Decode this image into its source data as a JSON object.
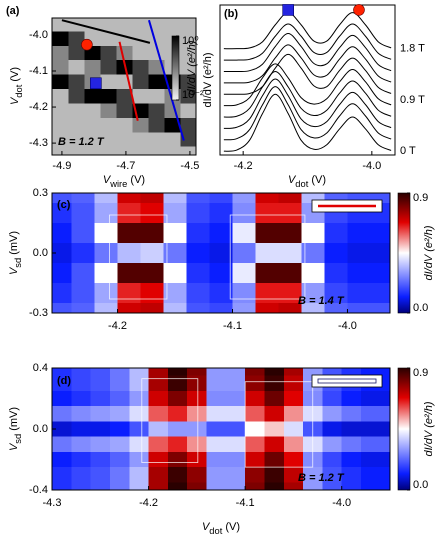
{
  "chart_data": [
    {
      "type": "heatmap",
      "label": "(a)",
      "x_label": {
        "symbol": "V",
        "subscript": "wire",
        "unit": " (V)"
      },
      "y_label": {
        "symbol": "V",
        "subscript": "dot",
        "unit": " (V)"
      },
      "annotation": "B = 1.2 T",
      "x": [
        -4.905,
        -4.855,
        -4.805,
        -4.755,
        -4.705,
        -4.655,
        -4.605,
        -4.555,
        -4.505
      ],
      "y": [
        -3.97,
        -4.01,
        -4.05,
        -4.09,
        -4.13,
        -4.17,
        -4.21,
        -4.25,
        -4.29,
        -4.33
      ],
      "z": [
        [
          0.03,
          0.03,
          0.03,
          0.03,
          0.03,
          0.03,
          0.03,
          0.03,
          0.03
        ],
        [
          1,
          0.3,
          0.03,
          0.03,
          0.03,
          0.03,
          0.03,
          0.03,
          0.03
        ],
        [
          0.08,
          0.3,
          1,
          0.3,
          0.08,
          0.03,
          0.03,
          0.03,
          0.03
        ],
        [
          0.08,
          0.03,
          0.08,
          0.3,
          1,
          0.3,
          0.08,
          0.03,
          0.03
        ],
        [
          1,
          0.3,
          0.08,
          0.03,
          0.03,
          0.3,
          1,
          1,
          0.3
        ],
        [
          0.03,
          0.3,
          1,
          1,
          0.3,
          0.03,
          0.03,
          0.08,
          0.3
        ],
        [
          0.03,
          0.03,
          0.03,
          0.08,
          0.3,
          1,
          0.3,
          0.08,
          0.03
        ],
        [
          0.03,
          0.03,
          0.03,
          0.03,
          0.03,
          0.08,
          0.3,
          1,
          0.3
        ],
        [
          0.03,
          0.03,
          0.03,
          0.03,
          0.03,
          0.03,
          0.03,
          0.03,
          0.3
        ],
        [
          0.03,
          0.03,
          0.03,
          0.03,
          0.03,
          0.03,
          0.03,
          0.03,
          0.03
        ]
      ],
      "xlim": [
        -4.931,
        -4.481
      ],
      "ylim": [
        -4.333,
        -3.953
      ],
      "xticks": [
        -4.9,
        -4.7,
        -4.5
      ],
      "yticks": [
        {
          "value": -4,
          "label": "-4.0"
        },
        -4.1,
        -4.2,
        -4.3
      ],
      "zscale": "log",
      "zlim": [
        0.01,
        1
      ],
      "zticks": [
        {
          "value": 1,
          "label": "10⁰"
        },
        {
          "value": 0.01,
          "label": "10⁻²"
        }
      ],
      "colorbar_label": "dI/dV (e²/h)",
      "colorscale": [
        [
          0.01,
          "#f4f4f4"
        ],
        [
          1,
          "#000000"
        ]
      ],
      "lines": [
        {
          "color": "#000000",
          "x": [
            -4.9,
            -4.625
          ],
          "y": [
            -3.959,
            -4.022
          ]
        },
        {
          "color": "#e00000",
          "x": [
            -4.72,
            -4.663
          ],
          "y": [
            -4.019,
            -4.238
          ]
        },
        {
          "color": "#0000e0",
          "x": [
            -4.628,
            -4.519
          ],
          "y": [
            -3.959,
            -4.293
          ]
        }
      ],
      "markers": [
        {
          "shape": "circle",
          "color": "#ff2200",
          "x": -4.822,
          "y": -4.027
        },
        {
          "shape": "square",
          "color": "#2424e0",
          "x": -4.794,
          "y": -4.134
        }
      ]
    },
    {
      "type": "line",
      "label": "(b)",
      "x_label": {
        "symbol": "V",
        "subscript": "dot",
        "unit": " (V)"
      },
      "y_label": "dI/dV (e²/h)",
      "x": [
        -4.23,
        -4.21,
        -4.19,
        -4.17,
        -4.15,
        -4.13,
        -4.11,
        -4.09,
        -4.07,
        -4.05,
        -4.03,
        -4.01,
        -3.99,
        -3.97
      ],
      "series": [
        {
          "color": "#000000",
          "values": [
            0,
            0.03,
            0.29,
            0.99,
            1.5,
            0.99,
            0.29,
            0.05,
            0.17,
            0.59,
            0.9,
            0.59,
            0.17,
            0.02
          ]
        },
        {
          "color": "#000000",
          "values": [
            0.3,
            0.33,
            0.57,
            1.22,
            1.7,
            1.22,
            0.57,
            0.35,
            0.48,
            0.93,
            1.25,
            0.93,
            0.48,
            0.32
          ]
        },
        {
          "color": "#000000",
          "values": [
            0.6,
            0.63,
            0.85,
            1.46,
            1.9,
            1.46,
            0.85,
            0.65,
            0.78,
            1.23,
            1.55,
            1.23,
            0.78,
            0.62
          ]
        },
        {
          "color": "#000000",
          "values": [
            0.9,
            0.92,
            1.13,
            1.69,
            2.1,
            1.69,
            1.13,
            0.94,
            1.08,
            1.53,
            1.85,
            1.53,
            1.08,
            0.92
          ]
        },
        {
          "color": "#000000",
          "values": [
            1.2,
            1.22,
            1.41,
            1.93,
            2.3,
            1.93,
            1.41,
            1.24,
            1.38,
            1.83,
            2.15,
            1.83,
            1.38,
            1.22
          ]
        },
        {
          "color": "#000000",
          "values": [
            1.5,
            1.5,
            1.52,
            1.7,
            2.19,
            2.55,
            2.19,
            1.72,
            1.7,
            2.13,
            2.45,
            2.13,
            1.68,
            1.52
          ]
        },
        {
          "color": "#000000",
          "values": [
            1.8,
            1.8,
            1.82,
            1.99,
            2.46,
            2.8,
            2.46,
            2.01,
            2.0,
            2.43,
            2.75,
            2.43,
            1.98,
            1.82
          ]
        },
        {
          "color": "#000000",
          "values": [
            2.1,
            2.1,
            2.12,
            2.29,
            2.76,
            3.1,
            2.76,
            2.31,
            2.3,
            2.73,
            3.05,
            2.73,
            2.28,
            2.12
          ]
        },
        {
          "color": "#000000",
          "values": [
            2.4,
            2.4,
            2.42,
            2.58,
            3.03,
            3.35,
            3.03,
            2.6,
            2.6,
            3.03,
            3.35,
            3.03,
            2.58,
            2.42
          ]
        },
        {
          "color": "#000000",
          "values": [
            2.7,
            2.7,
            2.72,
            2.88,
            3.33,
            3.65,
            3.33,
            2.9,
            2.9,
            3.33,
            3.65,
            3.33,
            2.88,
            2.72
          ]
        }
      ],
      "xlim": [
        -4.236,
        -3.964
      ],
      "ylim": [
        -0.1,
        3.85
      ],
      "xticks": [
        -4.2,
        {
          "value": -4,
          "label": "-4.0"
        }
      ],
      "right_labels": [
        "1.8 T",
        "0.9 T",
        "0 T"
      ],
      "markers": [
        {
          "shape": "square",
          "color": "#2424e0",
          "x": -4.13,
          "y": 3.72
        },
        {
          "shape": "circle",
          "color": "#ff2200",
          "x": -4.02,
          "y": 3.72
        }
      ]
    },
    {
      "type": "heatmap",
      "label": "(c)",
      "y_label": {
        "symbol": "V",
        "subscript": "sd",
        "unit": " (mV)"
      },
      "annotation": "B = 1.4 T",
      "x": [
        -4.25,
        -4.23,
        -4.21,
        -4.19,
        -4.17,
        -4.15,
        -4.13,
        -4.11,
        -4.09,
        -4.07,
        -4.05,
        -4.03,
        -4.01,
        -3.99,
        -3.97
      ],
      "y": [
        0.3,
        0.2,
        0.1,
        0,
        -0.1,
        -0.2,
        -0.3
      ],
      "z": [
        [
          0.2,
          0.22,
          0.35,
          0.7,
          0.72,
          0.35,
          0.2,
          0.18,
          0.3,
          0.7,
          0.72,
          0.35,
          0.22,
          0.2,
          0.2
        ],
        [
          0.15,
          0.2,
          0.32,
          0.65,
          0.68,
          0.32,
          0.18,
          0.15,
          0.28,
          0.66,
          0.66,
          0.3,
          0.18,
          0.15,
          0.15
        ],
        [
          0.12,
          0.2,
          0.45,
          0.85,
          0.85,
          0.45,
          0.15,
          0.12,
          0.42,
          0.85,
          0.85,
          0.45,
          0.15,
          0.12,
          0.12
        ],
        [
          0.1,
          0.15,
          0.25,
          0.35,
          0.38,
          0.25,
          0.12,
          0.1,
          0.25,
          0.4,
          0.4,
          0.25,
          0.12,
          0.1,
          0.1
        ],
        [
          0.12,
          0.2,
          0.45,
          0.85,
          0.85,
          0.45,
          0.15,
          0.12,
          0.42,
          0.85,
          0.85,
          0.45,
          0.15,
          0.12,
          0.12
        ],
        [
          0.15,
          0.2,
          0.32,
          0.65,
          0.68,
          0.32,
          0.18,
          0.15,
          0.28,
          0.66,
          0.66,
          0.3,
          0.18,
          0.15,
          0.15
        ],
        [
          0.2,
          0.22,
          0.35,
          0.7,
          0.72,
          0.35,
          0.2,
          0.18,
          0.3,
          0.7,
          0.72,
          0.35,
          0.22,
          0.2,
          0.2
        ]
      ],
      "xlim": [
        -4.257,
        -3.963
      ],
      "ylim": [
        -0.3,
        0.3
      ],
      "xticks": [
        -4.2,
        -4.1,
        {
          "value": -4,
          "label": "-4.0"
        }
      ],
      "yticks": [
        0.3,
        {
          "value": 0,
          "label": "0.0"
        },
        -0.3
      ],
      "zscale": "linear",
      "zlim": [
        0,
        0.9
      ],
      "zticks": [
        {
          "value": 0.9,
          "label": "0.9"
        },
        {
          "value": 0,
          "label": "0.0"
        }
      ],
      "colorbar_label": "dI/dV (e²/h)",
      "colorscale": [
        [
          0,
          "#00007a"
        ],
        [
          0.12,
          "#0a1eff"
        ],
        [
          0.45,
          "#ffffff"
        ],
        [
          0.68,
          "#e00000"
        ],
        [
          0.9,
          "#2a0000"
        ]
      ],
      "windows": [
        {
          "x": [
            -4.207,
            -4.157
          ],
          "y": [
            -0.23,
            0.19
          ]
        },
        {
          "x": [
            -4.102,
            -4.037
          ],
          "y": [
            -0.23,
            0.19
          ]
        }
      ]
    },
    {
      "type": "heatmap",
      "label": "(d)",
      "x_label": {
        "symbol": "V",
        "subscript": "dot",
        "unit": " (V)"
      },
      "y_label": {
        "symbol": "V",
        "subscript": "sd",
        "unit": " (mV)"
      },
      "annotation": "B = 1.2 T",
      "x": [
        -4.29,
        -4.27,
        -4.25,
        -4.23,
        -4.21,
        -4.19,
        -4.17,
        -4.15,
        -4.13,
        -4.11,
        -4.09,
        -4.07,
        -4.05,
        -4.03,
        -4.01,
        -3.99,
        -3.97,
        -3.95
      ],
      "y": [
        0.4,
        0.3,
        0.2,
        0.1,
        0,
        -0.1,
        -0.2,
        -0.3,
        -0.4
      ],
      "z": [
        [
          0.15,
          0.18,
          0.2,
          0.25,
          0.35,
          0.75,
          0.9,
          0.8,
          0.3,
          0.3,
          0.8,
          0.9,
          0.75,
          0.3,
          0.2,
          0.15,
          0.12,
          0.12
        ],
        [
          0.15,
          0.18,
          0.2,
          0.25,
          0.35,
          0.75,
          0.88,
          0.78,
          0.3,
          0.3,
          0.78,
          0.88,
          0.72,
          0.3,
          0.2,
          0.15,
          0.12,
          0.12
        ],
        [
          0.12,
          0.15,
          0.18,
          0.22,
          0.3,
          0.7,
          0.8,
          0.7,
          0.28,
          0.28,
          0.7,
          0.82,
          0.68,
          0.28,
          0.18,
          0.12,
          0.1,
          0.1
        ],
        [
          0.25,
          0.28,
          0.3,
          0.32,
          0.4,
          0.6,
          0.65,
          0.55,
          0.4,
          0.4,
          0.6,
          0.7,
          0.55,
          0.4,
          0.3,
          0.25,
          0.22,
          0.22
        ],
        [
          0.08,
          0.1,
          0.1,
          0.12,
          0.2,
          0.35,
          0.3,
          0.3,
          0.2,
          0.2,
          0.45,
          0.5,
          0.4,
          0.2,
          0.1,
          0.08,
          0.08,
          0.08
        ],
        [
          0.25,
          0.28,
          0.3,
          0.32,
          0.4,
          0.6,
          0.65,
          0.55,
          0.4,
          0.4,
          0.6,
          0.7,
          0.55,
          0.4,
          0.3,
          0.25,
          0.22,
          0.22
        ],
        [
          0.12,
          0.15,
          0.18,
          0.22,
          0.3,
          0.7,
          0.8,
          0.7,
          0.28,
          0.28,
          0.7,
          0.82,
          0.68,
          0.28,
          0.18,
          0.12,
          0.1,
          0.1
        ],
        [
          0.15,
          0.18,
          0.2,
          0.25,
          0.35,
          0.75,
          0.88,
          0.78,
          0.3,
          0.3,
          0.78,
          0.88,
          0.72,
          0.3,
          0.2,
          0.15,
          0.12,
          0.12
        ],
        [
          0.15,
          0.18,
          0.2,
          0.25,
          0.35,
          0.75,
          0.9,
          0.8,
          0.3,
          0.3,
          0.8,
          0.9,
          0.75,
          0.3,
          0.2,
          0.15,
          0.12,
          0.12
        ]
      ],
      "xlim": [
        -4.3,
        -3.95
      ],
      "ylim": [
        -0.4,
        0.4
      ],
      "xticks": [
        -4.3,
        -4.2,
        -4.1,
        {
          "value": -4,
          "label": "-4.0"
        }
      ],
      "yticks": [
        0.4,
        {
          "value": 0,
          "label": "0.0"
        },
        -0.4
      ],
      "zscale": "linear",
      "zlim": [
        0,
        0.9
      ],
      "zticks": [
        {
          "value": 0.9,
          "label": "0.9"
        },
        {
          "value": 0,
          "label": "0.0"
        }
      ],
      "colorbar_label": "dI/dV (e²/h)",
      "colorscale": [
        [
          0,
          "#00007a"
        ],
        [
          0.12,
          "#0a1eff"
        ],
        [
          0.45,
          "#ffffff"
        ],
        [
          0.68,
          "#e00000"
        ],
        [
          0.9,
          "#2a0000"
        ]
      ],
      "windows": [
        {
          "x": [
            -4.207,
            -4.149
          ],
          "y": [
            -0.22,
            0.33
          ]
        },
        {
          "x": [
            -4.1,
            -4.03
          ],
          "y": [
            -0.25,
            0.31
          ]
        }
      ]
    }
  ]
}
